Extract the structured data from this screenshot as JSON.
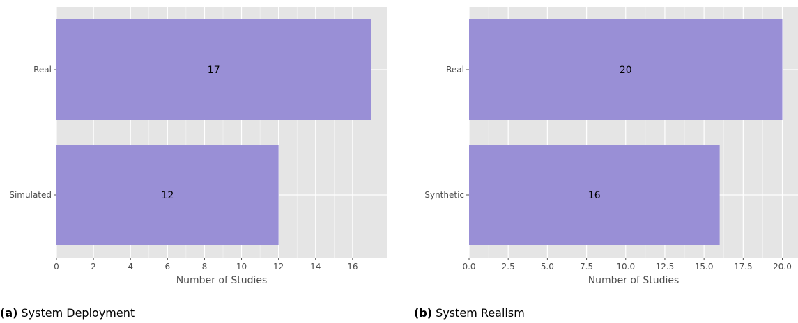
{
  "colors": {
    "panel": "#e5e5e5",
    "grid": "#ffffff",
    "bar": "#998fd6",
    "tick": "#4d4d4d"
  },
  "chart_data": [
    {
      "type": "bar",
      "orientation": "horizontal",
      "categories": [
        "Real",
        "Simulated"
      ],
      "values": [
        17,
        12
      ],
      "xlabel": "Number of Studies",
      "xlim": [
        0,
        17.85
      ],
      "xticks": [
        0,
        2,
        4,
        6,
        8,
        10,
        12,
        14,
        16
      ],
      "tick_labels": [
        "0",
        "2",
        "4",
        "6",
        "8",
        "10",
        "12",
        "14",
        "16"
      ],
      "data_labels": [
        "17",
        "12"
      ],
      "grid": true
    },
    {
      "type": "bar",
      "orientation": "horizontal",
      "categories": [
        "Real",
        "Synthetic"
      ],
      "values": [
        20,
        16
      ],
      "xlabel": "Number of Studies",
      "xlim": [
        0,
        21
      ],
      "xticks": [
        0,
        2.5,
        5,
        7.5,
        10,
        12.5,
        15,
        17.5,
        20
      ],
      "tick_labels": [
        "0.0",
        "2.5",
        "5.0",
        "7.5",
        "10.0",
        "12.5",
        "15.0",
        "17.5",
        "20.0"
      ],
      "data_labels": [
        "20",
        "16"
      ],
      "grid": true
    }
  ],
  "captions": [
    {
      "tag": "(a)",
      "text": "System Deployment"
    },
    {
      "tag": "(b)",
      "text": "System Realism"
    }
  ]
}
